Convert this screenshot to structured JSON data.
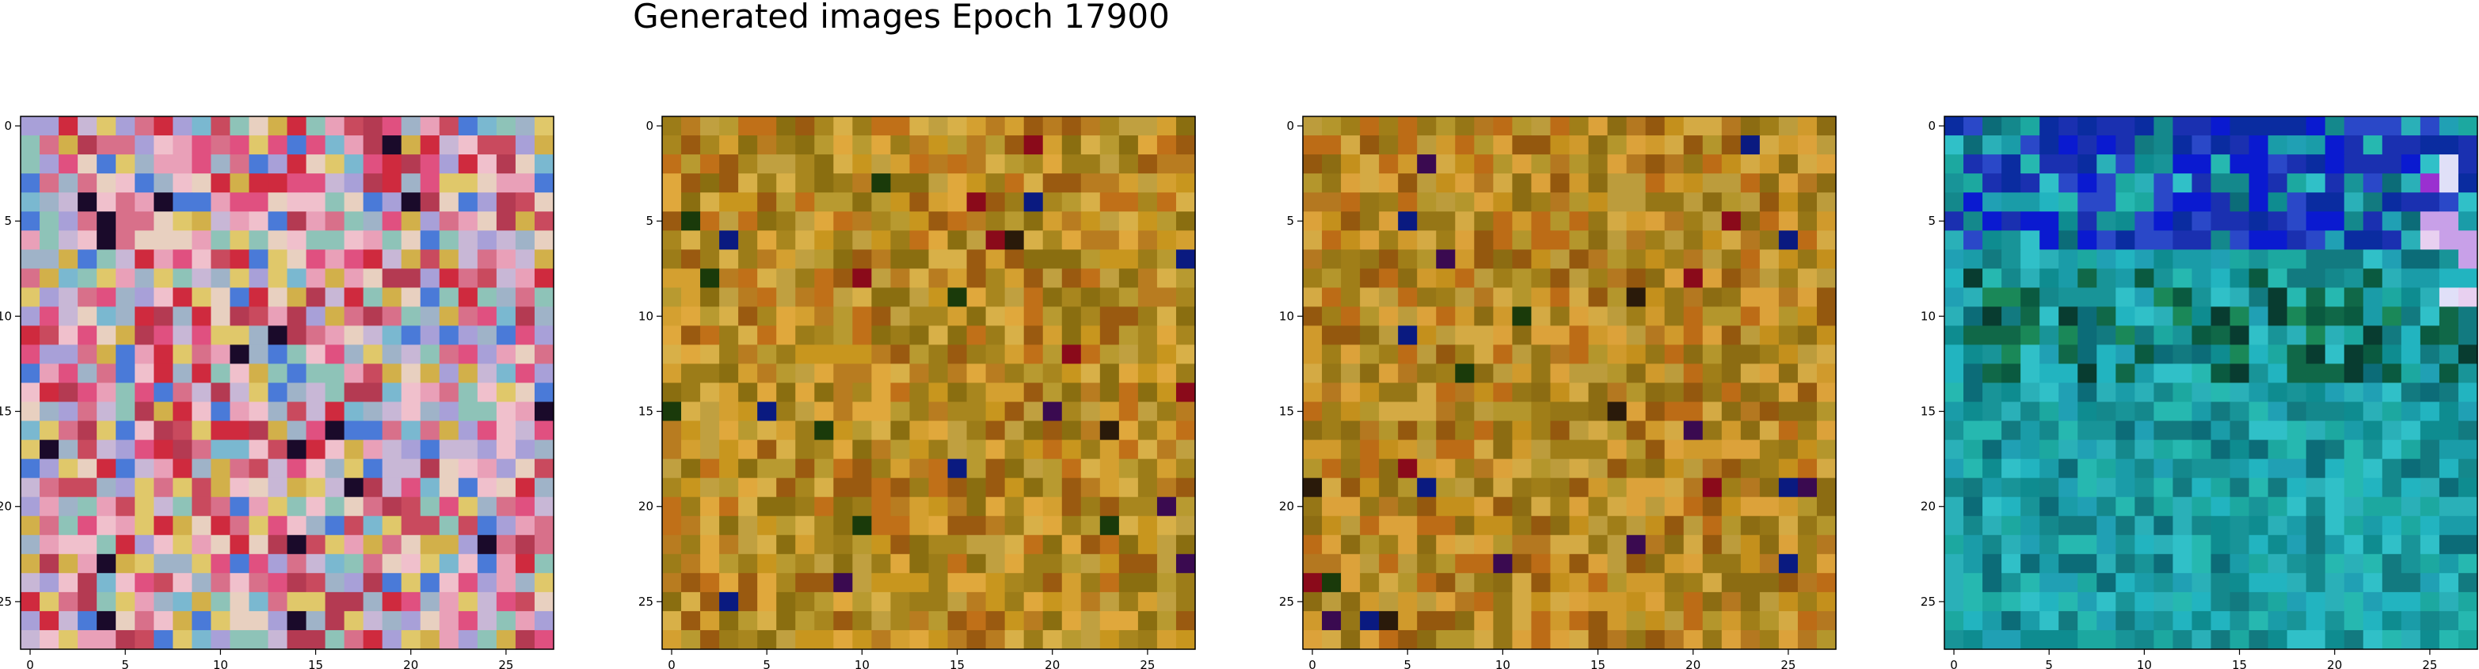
{
  "figure": {
    "title": "Generated images Epoch 17900"
  },
  "chart_data": {
    "type": "heatmap",
    "title": "Generated images Epoch 17900",
    "grid": false,
    "image_size": 28,
    "x_ticks": [
      0,
      5,
      10,
      15,
      20,
      25
    ],
    "y_ticks": [
      0,
      5,
      10,
      15,
      20,
      25
    ],
    "panels": [
      {
        "name": "image-1",
        "palette": "pastel-mixed",
        "colors": [
          "#d8708a",
          "#e9a0b8",
          "#9fb3c8",
          "#c8b7d6",
          "#e0c86a",
          "#c94a5e",
          "#f0c0cc",
          "#8ec3b8",
          "#d2b04a",
          "#b43a52",
          "#e05080",
          "#a8a0d8",
          "#cf2a3e",
          "#7ab8d0",
          "#e8d0c0",
          "#4a7ad8"
        ]
      },
      {
        "name": "image-2",
        "palette": "ochre",
        "colors": [
          "#c8961e",
          "#a8861e",
          "#d4a030",
          "#8a6e10",
          "#b87c20",
          "#c0a040",
          "#9c7c18",
          "#d8b048",
          "#c07018",
          "#e0a83c",
          "#9a5a10",
          "#b89a30"
        ]
      },
      {
        "name": "image-3",
        "palette": "ochre",
        "colors": [
          "#c4901c",
          "#a07e18",
          "#d09a2c",
          "#8c6c12",
          "#b47820",
          "#bc9c3c",
          "#967616",
          "#d4aa44",
          "#bc6c16",
          "#dca23a",
          "#94580e",
          "#b4962c"
        ]
      },
      {
        "name": "image-4",
        "palette": "teal-blue",
        "colors": [
          "#1ca8a0",
          "#0e8c90",
          "#26b8b0",
          "#127a80",
          "#1a9ca8",
          "#22b4c0",
          "#0c6c78",
          "#30c0c8",
          "#14888c",
          "#20a0b4",
          "#189498",
          "#2ab0b8"
        ]
      }
    ]
  }
}
